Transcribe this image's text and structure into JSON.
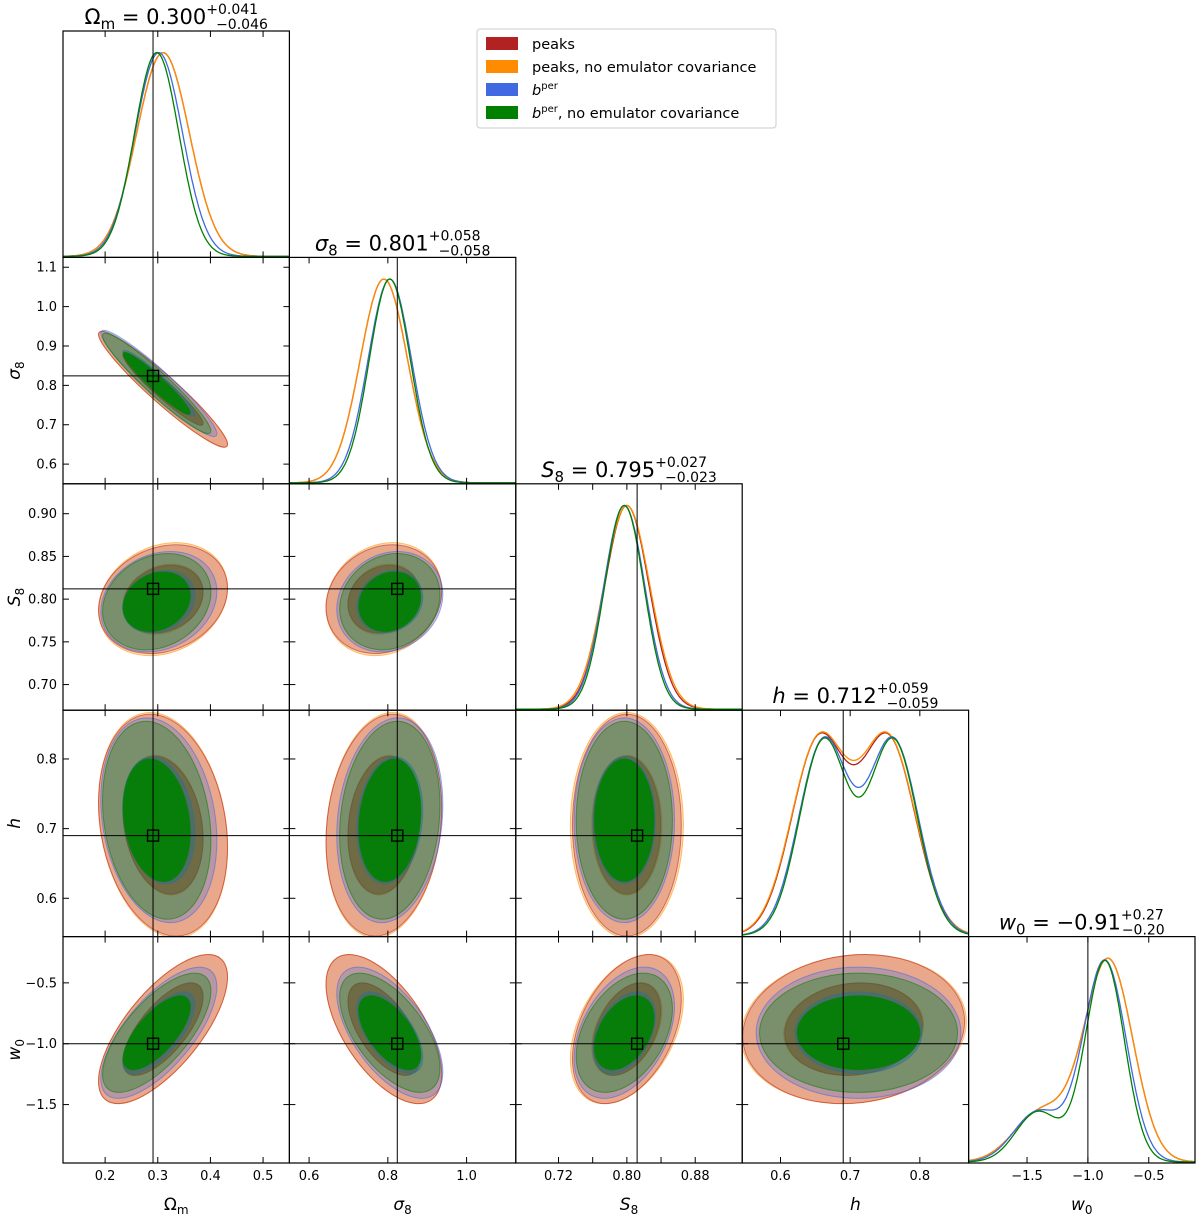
{
  "chart_data": {
    "type": "corner",
    "parameters": [
      {
        "key": "Om",
        "label": "Ωm",
        "title": {
          "pre": "Ω",
          "sub": "m",
          "value": " = 0.300",
          "plus": "+0.041",
          "minus": "−0.046"
        },
        "range": [
          0.12,
          0.55
        ],
        "ticks": [
          0.2,
          0.3,
          0.4,
          0.5
        ],
        "tick_labels": [
          "0.2",
          "0.3",
          "0.4",
          "0.5"
        ],
        "truth": 0.291
      },
      {
        "key": "s8",
        "label": "σ8",
        "title": {
          "pre": "σ",
          "sub": "8",
          "value": " = 0.801",
          "plus": "+0.058",
          "minus": "−0.058"
        },
        "range": [
          0.55,
          1.125
        ],
        "ticks": [
          0.6,
          0.7,
          0.8,
          0.9,
          1.0,
          1.1
        ],
        "tick_labels": [
          "0.6",
          "0.7",
          "0.8",
          "0.9",
          "1.0",
          "1.1"
        ],
        "x_ticks": [
          0.6,
          0.8,
          1.0
        ],
        "x_tick_labels": [
          "0.6",
          "0.8",
          "1.0"
        ],
        "truth": 0.824
      },
      {
        "key": "S8",
        "label": "S8",
        "title": {
          "pre": "S",
          "sub": "8",
          "value": " = 0.795",
          "plus": "+0.027",
          "minus": "−0.023"
        },
        "range": [
          0.67,
          0.935
        ],
        "ticks": [
          0.7,
          0.75,
          0.8,
          0.85,
          0.9
        ],
        "tick_labels": [
          "0.70",
          "0.75",
          "0.80",
          "0.85",
          "0.90"
        ],
        "x_ticks": [
          0.72,
          0.76,
          0.8,
          0.84,
          0.88
        ],
        "x_tick_labels": [
          "0.72",
          "",
          "0.80",
          "",
          "0.88"
        ],
        "truth": 0.812
      },
      {
        "key": "h",
        "label": "h",
        "title": {
          "pre": "h",
          "sub": "",
          "value": " = 0.712",
          "plus": "+0.059",
          "minus": "−0.059"
        },
        "range": [
          0.545,
          0.87
        ],
        "ticks": [
          0.6,
          0.7,
          0.8
        ],
        "tick_labels": [
          "0.6",
          "0.7",
          "0.8"
        ],
        "truth": 0.69
      },
      {
        "key": "w0",
        "label": "w0",
        "title": {
          "pre": "w",
          "sub": "0",
          "value": " = −0.91",
          "plus": "+0.27",
          "minus": "−0.20"
        },
        "range": [
          -1.98,
          -0.12
        ],
        "ticks": [
          -1.5,
          -1.0,
          -0.5
        ],
        "tick_labels": [
          "−1.5",
          "−1.0",
          "−0.5"
        ],
        "truth": -1.0
      }
    ],
    "series": [
      {
        "name": "peaks",
        "color": "#b22222",
        "mean": {
          "Om": 0.31,
          "s8": 0.79,
          "S8": 0.8,
          "h": 0.705,
          "w0": -0.88
        },
        "sd": {
          "Om": 0.05,
          "s8": 0.06,
          "S8": 0.026,
          "h": 0.065,
          "w0": 0.25
        },
        "corr": {
          "Om-s8": -0.95,
          "Om-S8": 0.2,
          "Om-h": -0.2,
          "Om-w0": 0.7,
          "s8-S8": 0.15,
          "s8-h": 0.15,
          "s8-w0": -0.6,
          "S8-h": 0.0,
          "S8-w0": 0.4,
          "h-w0": 0.1
        }
      },
      {
        "name": "peaks, no emulator covariance",
        "color": "#ff8c00",
        "mean": {
          "Om": 0.31,
          "s8": 0.79,
          "S8": 0.8,
          "h": 0.705,
          "w0": -0.88
        },
        "sd": {
          "Om": 0.05,
          "s8": 0.06,
          "S8": 0.027,
          "h": 0.066,
          "w0": 0.25
        },
        "corr": {
          "Om-s8": -0.95,
          "Om-S8": 0.2,
          "Om-h": -0.2,
          "Om-w0": 0.7,
          "s8-S8": 0.15,
          "s8-h": 0.15,
          "s8-w0": -0.6,
          "S8-h": 0.0,
          "S8-w0": 0.4,
          "h-w0": 0.1
        }
      },
      {
        "name": "b^per",
        "color": "#4169e1",
        "mean": {
          "Om": 0.302,
          "s8": 0.805,
          "S8": 0.797,
          "h": 0.712,
          "w0": -0.91
        },
        "sd": {
          "Om": 0.045,
          "s8": 0.055,
          "S8": 0.024,
          "h": 0.06,
          "w0": 0.22
        },
        "corr": {
          "Om-s8": -0.95,
          "Om-S8": 0.2,
          "Om-h": -0.2,
          "Om-w0": 0.7,
          "s8-S8": 0.15,
          "s8-h": 0.15,
          "s8-w0": -0.6,
          "S8-h": 0.0,
          "S8-w0": 0.4,
          "h-w0": 0.0
        }
      },
      {
        "name": "b^per, no emulator covariance",
        "color": "#008000",
        "mean": {
          "Om": 0.298,
          "s8": 0.805,
          "S8": 0.797,
          "h": 0.712,
          "w0": -0.91
        },
        "sd": {
          "Om": 0.042,
          "s8": 0.052,
          "S8": 0.023,
          "h": 0.058,
          "w0": 0.2
        },
        "corr": {
          "Om-s8": -0.95,
          "Om-S8": 0.2,
          "Om-h": -0.2,
          "Om-w0": 0.7,
          "s8-S8": 0.15,
          "s8-h": 0.15,
          "s8-w0": -0.6,
          "S8-h": 0.0,
          "S8-w0": 0.4,
          "h-w0": 0.0
        }
      }
    ],
    "legend": {
      "placement": "top-right",
      "entries": [
        {
          "color": "#b22222",
          "text": "peaks"
        },
        {
          "color": "#ff8c00",
          "text": "peaks, no emulator covariance"
        },
        {
          "color": "#4169e1",
          "base": "b",
          "sup": "per",
          "rest": ""
        },
        {
          "color": "#008000",
          "base": "b",
          "sup": "per",
          "rest": ", no emulator covariance"
        }
      ]
    },
    "truth_marker": "open square",
    "grid": false
  }
}
